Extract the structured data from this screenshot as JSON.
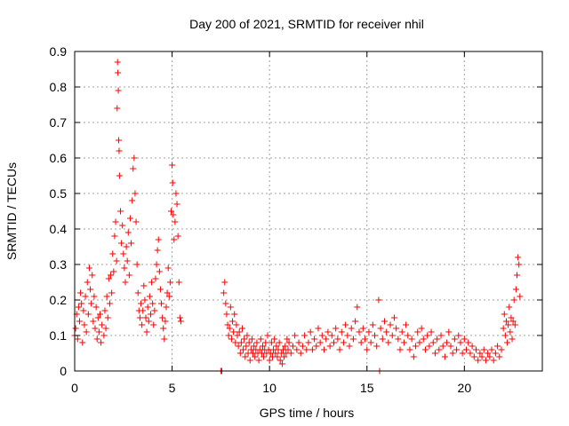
{
  "chart_data": {
    "type": "scatter",
    "title": "Day 200 of 2021, SRMTID for receiver nhil",
    "xlabel": "GPS time / hours",
    "ylabel": "SRMTID / TECUs",
    "xlim": [
      0,
      24
    ],
    "ylim": [
      0,
      0.9
    ],
    "xticks": [
      0,
      5,
      10,
      15,
      20
    ],
    "yticks": [
      0,
      0.1,
      0.2,
      0.3,
      0.4,
      0.5,
      0.6,
      0.7,
      0.8,
      0.9
    ],
    "grid": true,
    "marker": "+",
    "color": "#ff0000",
    "series": [
      {
        "name": "SRMTID",
        "points": [
          [
            0.0,
            0.1
          ],
          [
            0.05,
            0.12
          ],
          [
            0.1,
            0.16
          ],
          [
            0.15,
            0.09
          ],
          [
            0.2,
            0.18
          ],
          [
            0.25,
            0.14
          ],
          [
            0.3,
            0.22
          ],
          [
            0.35,
            0.19
          ],
          [
            0.4,
            0.08
          ],
          [
            0.45,
            0.17
          ],
          [
            0.5,
            0.13
          ],
          [
            0.55,
            0.21
          ],
          [
            0.6,
            0.11
          ],
          [
            0.65,
            0.25
          ],
          [
            0.7,
            0.16
          ],
          [
            0.75,
            0.29
          ],
          [
            0.8,
            0.23
          ],
          [
            0.85,
            0.19
          ],
          [
            0.9,
            0.27
          ],
          [
            0.95,
            0.14
          ],
          [
            1.0,
            0.21
          ],
          [
            1.05,
            0.12
          ],
          [
            1.1,
            0.18
          ],
          [
            1.15,
            0.09
          ],
          [
            1.2,
            0.15
          ],
          [
            1.25,
            0.11
          ],
          [
            1.3,
            0.16
          ],
          [
            1.35,
            0.08
          ],
          [
            1.4,
            0.13
          ],
          [
            1.5,
            0.1
          ],
          [
            1.55,
            0.17
          ],
          [
            1.6,
            0.12
          ],
          [
            1.65,
            0.21
          ],
          [
            1.7,
            0.15
          ],
          [
            1.75,
            0.26
          ],
          [
            1.8,
            0.19
          ],
          [
            1.85,
            0.27
          ],
          [
            1.9,
            0.22
          ],
          [
            1.95,
            0.33
          ],
          [
            2.0,
            0.28
          ],
          [
            2.05,
            0.38
          ],
          [
            2.1,
            0.42
          ],
          [
            2.15,
            0.31
          ],
          [
            2.18,
            0.74
          ],
          [
            2.2,
            0.87
          ],
          [
            2.22,
            0.84
          ],
          [
            2.24,
            0.79
          ],
          [
            2.26,
            0.65
          ],
          [
            2.28,
            0.62
          ],
          [
            2.3,
            0.55
          ],
          [
            2.35,
            0.45
          ],
          [
            2.4,
            0.36
          ],
          [
            2.45,
            0.41
          ],
          [
            2.5,
            0.33
          ],
          [
            2.55,
            0.29
          ],
          [
            2.6,
            0.25
          ],
          [
            2.65,
            0.35
          ],
          [
            2.7,
            0.31
          ],
          [
            2.75,
            0.39
          ],
          [
            2.8,
            0.27
          ],
          [
            2.85,
            0.43
          ],
          [
            2.9,
            0.36
          ],
          [
            2.95,
            0.48
          ],
          [
            3.0,
            0.57
          ],
          [
            3.05,
            0.6
          ],
          [
            3.1,
            0.5
          ],
          [
            3.15,
            0.42
          ],
          [
            3.2,
            0.3
          ],
          [
            3.25,
            0.22
          ],
          [
            3.3,
            0.17
          ],
          [
            3.35,
            0.15
          ],
          [
            3.4,
            0.19
          ],
          [
            3.45,
            0.13
          ],
          [
            3.5,
            0.17
          ],
          [
            3.55,
            0.24
          ],
          [
            3.6,
            0.2
          ],
          [
            3.65,
            0.15
          ],
          [
            3.7,
            0.11
          ],
          [
            3.75,
            0.18
          ],
          [
            3.8,
            0.14
          ],
          [
            3.85,
            0.21
          ],
          [
            3.9,
            0.16
          ],
          [
            3.95,
            0.25
          ],
          [
            4.0,
            0.19
          ],
          [
            4.05,
            0.13
          ],
          [
            4.1,
            0.17
          ],
          [
            4.15,
            0.26
          ],
          [
            4.2,
            0.3
          ],
          [
            4.25,
            0.34
          ],
          [
            4.3,
            0.37
          ],
          [
            4.35,
            0.28
          ],
          [
            4.4,
            0.23
          ],
          [
            4.45,
            0.19
          ],
          [
            4.5,
            0.15
          ],
          [
            4.55,
            0.12
          ],
          [
            4.6,
            0.09
          ],
          [
            4.65,
            0.14
          ],
          [
            4.7,
            0.18
          ],
          [
            4.75,
            0.22
          ],
          [
            4.8,
            0.29
          ],
          [
            4.85,
            0.21
          ],
          [
            4.9,
            0.25
          ],
          [
            4.95,
            0.45
          ],
          [
            5.0,
            0.58
          ],
          [
            5.03,
            0.53
          ],
          [
            5.06,
            0.44
          ],
          [
            5.1,
            0.37
          ],
          [
            5.15,
            0.42
          ],
          [
            5.2,
            0.5
          ],
          [
            5.25,
            0.47
          ],
          [
            5.3,
            0.38
          ],
          [
            5.35,
            0.25
          ],
          [
            5.4,
            0.15
          ],
          [
            5.45,
            0.14
          ],
          [
            7.5,
            0.0
          ],
          [
            7.55,
            0.0
          ],
          [
            7.65,
            0.22
          ],
          [
            7.7,
            0.25
          ],
          [
            7.75,
            0.19
          ],
          [
            7.8,
            0.16
          ],
          [
            7.85,
            0.13
          ],
          [
            7.9,
            0.1
          ],
          [
            7.95,
            0.12
          ],
          [
            8.0,
            0.18
          ],
          [
            8.05,
            0.09
          ],
          [
            8.1,
            0.14
          ],
          [
            8.15,
            0.11
          ],
          [
            8.2,
            0.16
          ],
          [
            8.25,
            0.08
          ],
          [
            8.3,
            0.13
          ],
          [
            8.35,
            0.1
          ],
          [
            8.4,
            0.07
          ],
          [
            8.45,
            0.11
          ],
          [
            8.5,
            0.05
          ],
          [
            8.55,
            0.08
          ],
          [
            8.6,
            0.12
          ],
          [
            8.65,
            0.06
          ],
          [
            8.7,
            0.09
          ],
          [
            8.75,
            0.04
          ],
          [
            8.8,
            0.07
          ],
          [
            8.85,
            0.1
          ],
          [
            8.9,
            0.05
          ],
          [
            8.95,
            0.08
          ],
          [
            9.0,
            0.03
          ],
          [
            9.05,
            0.06
          ],
          [
            9.1,
            0.09
          ],
          [
            9.15,
            0.05
          ],
          [
            9.2,
            0.07
          ],
          [
            9.25,
            0.04
          ],
          [
            9.3,
            0.06
          ],
          [
            9.35,
            0.08
          ],
          [
            9.4,
            0.05
          ],
          [
            9.45,
            0.03
          ],
          [
            9.5,
            0.06
          ],
          [
            9.55,
            0.09
          ],
          [
            9.6,
            0.05
          ],
          [
            9.65,
            0.07
          ],
          [
            9.7,
            0.04
          ],
          [
            9.75,
            0.06
          ],
          [
            9.8,
            0.08
          ],
          [
            9.85,
            0.05
          ],
          [
            9.9,
            0.1
          ],
          [
            9.95,
            0.06
          ],
          [
            10.0,
            0.03
          ],
          [
            10.05,
            0.05
          ],
          [
            10.1,
            0.08
          ],
          [
            10.15,
            0.04
          ],
          [
            10.2,
            0.06
          ],
          [
            10.25,
            0.09
          ],
          [
            10.3,
            0.05
          ],
          [
            10.35,
            0.07
          ],
          [
            10.4,
            0.04
          ],
          [
            10.45,
            0.06
          ],
          [
            10.5,
            0.08
          ],
          [
            10.55,
            0.03
          ],
          [
            10.6,
            0.05
          ],
          [
            10.65,
            0.02
          ],
          [
            10.7,
            0.06
          ],
          [
            10.75,
            0.04
          ],
          [
            10.8,
            0.07
          ],
          [
            10.85,
            0.05
          ],
          [
            10.9,
            0.09
          ],
          [
            10.95,
            0.06
          ],
          [
            11.0,
            0.08
          ],
          [
            11.1,
            0.05
          ],
          [
            11.2,
            0.07
          ],
          [
            11.3,
            0.1
          ],
          [
            11.4,
            0.06
          ],
          [
            11.5,
            0.08
          ],
          [
            11.6,
            0.05
          ],
          [
            11.7,
            0.07
          ],
          [
            11.8,
            0.1
          ],
          [
            11.9,
            0.06
          ],
          [
            12.0,
            0.08
          ],
          [
            12.1,
            0.11
          ],
          [
            12.2,
            0.06
          ],
          [
            12.3,
            0.09
          ],
          [
            12.4,
            0.07
          ],
          [
            12.5,
            0.12
          ],
          [
            12.6,
            0.08
          ],
          [
            12.7,
            0.1
          ],
          [
            12.8,
            0.06
          ],
          [
            12.9,
            0.09
          ],
          [
            13.0,
            0.11
          ],
          [
            13.1,
            0.07
          ],
          [
            13.2,
            0.1
          ],
          [
            13.3,
            0.08
          ],
          [
            13.4,
            0.12
          ],
          [
            13.5,
            0.09
          ],
          [
            13.6,
            0.06
          ],
          [
            13.7,
            0.11
          ],
          [
            13.8,
            0.08
          ],
          [
            13.9,
            0.13
          ],
          [
            14.0,
            0.1
          ],
          [
            14.1,
            0.07
          ],
          [
            14.2,
            0.12
          ],
          [
            14.3,
            0.09
          ],
          [
            14.4,
            0.14
          ],
          [
            14.5,
            0.18
          ],
          [
            14.6,
            0.11
          ],
          [
            14.7,
            0.08
          ],
          [
            14.8,
            0.12
          ],
          [
            14.9,
            0.09
          ],
          [
            15.0,
            0.06
          ],
          [
            15.1,
            0.11
          ],
          [
            15.2,
            0.08
          ],
          [
            15.3,
            0.13
          ],
          [
            15.4,
            0.1
          ],
          [
            15.5,
            0.07
          ],
          [
            15.6,
            0.2
          ],
          [
            15.65,
            0.0
          ],
          [
            15.7,
            0.12
          ],
          [
            15.8,
            0.09
          ],
          [
            15.9,
            0.14
          ],
          [
            16.0,
            0.11
          ],
          [
            16.1,
            0.08
          ],
          [
            16.2,
            0.13
          ],
          [
            16.3,
            0.1
          ],
          [
            16.4,
            0.15
          ],
          [
            16.5,
            0.12
          ],
          [
            16.6,
            0.09
          ],
          [
            16.7,
            0.06
          ],
          [
            16.8,
            0.11
          ],
          [
            16.9,
            0.08
          ],
          [
            17.0,
            0.13
          ],
          [
            17.1,
            0.1
          ],
          [
            17.2,
            0.06
          ],
          [
            17.3,
            0.09
          ],
          [
            17.4,
            0.04
          ],
          [
            17.5,
            0.07
          ],
          [
            17.6,
            0.11
          ],
          [
            17.7,
            0.08
          ],
          [
            17.8,
            0.12
          ],
          [
            17.9,
            0.09
          ],
          [
            18.0,
            0.06
          ],
          [
            18.1,
            0.1
          ],
          [
            18.2,
            0.07
          ],
          [
            18.3,
            0.11
          ],
          [
            18.4,
            0.08
          ],
          [
            18.5,
            0.05
          ],
          [
            18.6,
            0.09
          ],
          [
            18.7,
            0.06
          ],
          [
            18.8,
            0.1
          ],
          [
            18.9,
            0.07
          ],
          [
            19.0,
            0.04
          ],
          [
            19.1,
            0.08
          ],
          [
            19.2,
            0.11
          ],
          [
            19.3,
            0.07
          ],
          [
            19.4,
            0.05
          ],
          [
            19.5,
            0.09
          ],
          [
            19.6,
            0.06
          ],
          [
            19.7,
            0.1
          ],
          [
            19.8,
            0.08
          ],
          [
            19.9,
            0.05
          ],
          [
            20.0,
            0.09
          ],
          [
            20.1,
            0.06
          ],
          [
            20.2,
            0.08
          ],
          [
            20.3,
            0.05
          ],
          [
            20.4,
            0.07
          ],
          [
            20.5,
            0.04
          ],
          [
            20.6,
            0.06
          ],
          [
            20.7,
            0.03
          ],
          [
            20.8,
            0.05
          ],
          [
            20.9,
            0.04
          ],
          [
            21.0,
            0.06
          ],
          [
            21.1,
            0.03
          ],
          [
            21.2,
            0.05
          ],
          [
            21.3,
            0.04
          ],
          [
            21.4,
            0.06
          ],
          [
            21.5,
            0.03
          ],
          [
            21.6,
            0.05
          ],
          [
            21.7,
            0.07
          ],
          [
            21.8,
            0.04
          ],
          [
            21.9,
            0.06
          ],
          [
            22.0,
            0.12
          ],
          [
            22.05,
            0.16
          ],
          [
            22.1,
            0.1
          ],
          [
            22.15,
            0.14
          ],
          [
            22.2,
            0.08
          ],
          [
            22.25,
            0.13
          ],
          [
            22.3,
            0.18
          ],
          [
            22.35,
            0.11
          ],
          [
            22.4,
            0.15
          ],
          [
            22.45,
            0.09
          ],
          [
            22.5,
            0.14
          ],
          [
            22.55,
            0.2
          ],
          [
            22.6,
            0.13
          ],
          [
            22.65,
            0.23
          ],
          [
            22.7,
            0.27
          ],
          [
            22.75,
            0.32
          ],
          [
            22.8,
            0.3
          ],
          [
            22.85,
            0.21
          ]
        ]
      }
    ]
  }
}
